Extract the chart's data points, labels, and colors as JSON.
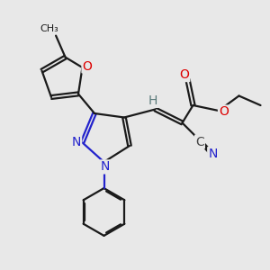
{
  "bg_color": "#e8e8e8",
  "bond_color": "#1a1a1a",
  "n_color": "#2222cc",
  "o_color": "#dd0000",
  "h_color": "#5a7a7a",
  "c_color": "#444444",
  "line_width": 1.6,
  "figsize": [
    3.0,
    3.0
  ],
  "dpi": 100,
  "xlim": [
    0,
    10
  ],
  "ylim": [
    0,
    10
  ]
}
